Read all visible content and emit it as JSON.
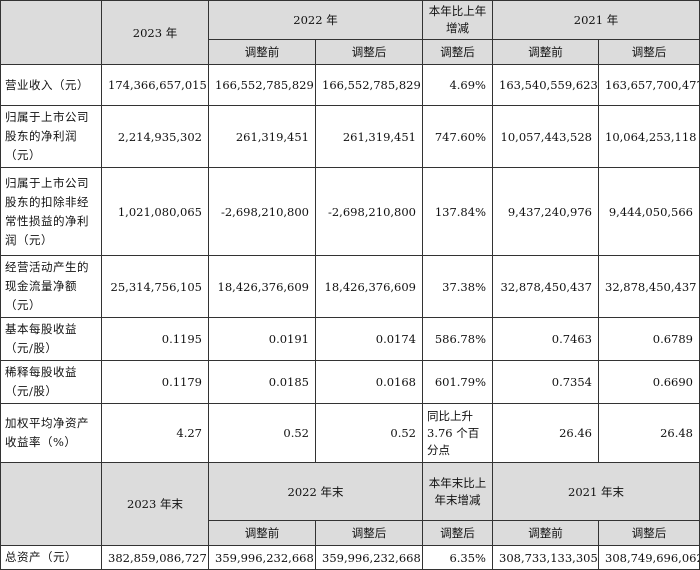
{
  "header1": {
    "y2023": "2023 年",
    "y2022": "2022 年",
    "change": "本年比上年增减",
    "y2021": "2021 年",
    "before": "调整前",
    "after": "调整后",
    "after_chg": "调整后"
  },
  "rows": [
    {
      "label": "营业收入（元）",
      "v2023": "174,366,657,015",
      "v2022a": "166,552,785,829",
      "v2022b": "166,552,785,829",
      "chg": "4.69%",
      "v2021a": "163,540,559,623",
      "v2021b": "163,657,700,477"
    },
    {
      "label": "归属于上市公司股东的净利润（元）",
      "v2023": "2,214,935,302",
      "v2022a": "261,319,451",
      "v2022b": "261,319,451",
      "chg": "747.60%",
      "v2021a": "10,057,443,528",
      "v2021b": "10,064,253,118"
    },
    {
      "label": "归属于上市公司股东的扣除非经常性损益的净利润（元）",
      "v2023": "1,021,080,065",
      "v2022a": "-2,698,210,800",
      "v2022b": "-2,698,210,800",
      "chg": "137.84%",
      "v2021a": "9,437,240,976",
      "v2021b": "9,444,050,566"
    },
    {
      "label": "经营活动产生的现金流量净额（元）",
      "v2023": "25,314,756,105",
      "v2022a": "18,426,376,609",
      "v2022b": "18,426,376,609",
      "chg": "37.38%",
      "v2021a": "32,878,450,437",
      "v2021b": "32,878,450,437"
    },
    {
      "label": "基本每股收益（元/股）",
      "v2023": "0.1195",
      "v2022a": "0.0191",
      "v2022b": "0.0174",
      "chg": "586.78%",
      "v2021a": "0.7463",
      "v2021b": "0.6789"
    },
    {
      "label": "稀释每股收益（元/股）",
      "v2023": "0.1179",
      "v2022a": "0.0185",
      "v2022b": "0.0168",
      "chg": "601.79%",
      "v2021a": "0.7354",
      "v2021b": "0.6690"
    },
    {
      "label": "加权平均净资产收益率（%）",
      "v2023": "4.27",
      "v2022a": "0.52",
      "v2022b": "0.52",
      "chg": "同比上升 3.76 个百分点",
      "v2021a": "26.46",
      "v2021b": "26.48"
    }
  ],
  "header2": {
    "y2023": "2023 年末",
    "y2022": "2022 年末",
    "change": "本年末比上年末增减",
    "y2021": "2021 年末",
    "before": "调整前",
    "after": "调整后",
    "after_chg": "调整后"
  },
  "asset_row": {
    "label": "总资产（元）",
    "v2023": "382,859,086,727",
    "v2022a": "359,996,232,668",
    "v2022b": "359,996,232,668",
    "chg": "6.35%",
    "v2021a": "308,733,133,305",
    "v2021b": "308,749,696,062"
  }
}
